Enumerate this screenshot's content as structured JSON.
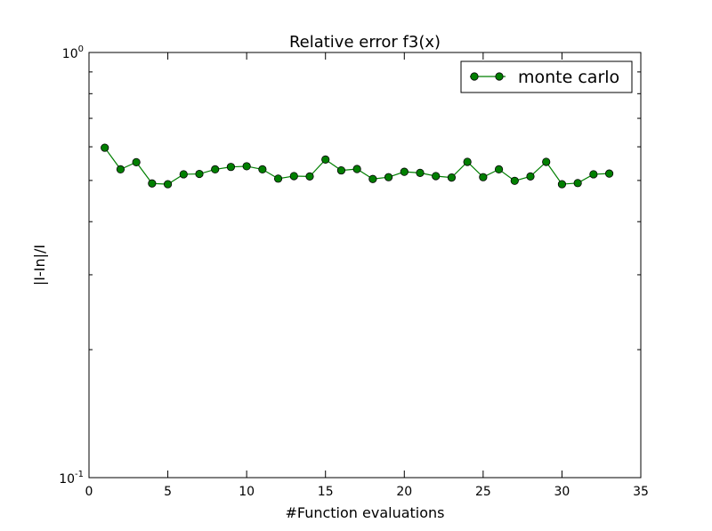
{
  "chart_data": {
    "type": "line",
    "title": "Relative error f3(x)",
    "xlabel": "#Function evaluations",
    "ylabel": "|I-In|/I",
    "xlim": [
      0,
      35
    ],
    "ylim": [
      0.1,
      1
    ],
    "yscale": "log",
    "xticks": [
      "0",
      "5",
      "10",
      "15",
      "20",
      "25",
      "30",
      "35"
    ],
    "yticks": [
      {
        "base": "10",
        "exp": "-1",
        "value": 0.1
      },
      {
        "base": "10",
        "exp": "0",
        "value": 1
      }
    ],
    "legend_position": "top-right",
    "series": [
      {
        "name": "monte carlo",
        "color": "#007f00",
        "marker": "circle",
        "x": [
          1,
          2,
          3,
          4,
          5,
          6,
          7,
          8,
          9,
          10,
          11,
          12,
          13,
          14,
          15,
          16,
          17,
          18,
          19,
          20,
          21,
          22,
          23,
          24,
          25,
          26,
          27,
          28,
          29,
          30,
          31,
          32,
          33
        ],
        "y": [
          0.597,
          0.531,
          0.552,
          0.492,
          0.49,
          0.517,
          0.518,
          0.531,
          0.538,
          0.54,
          0.531,
          0.505,
          0.512,
          0.511,
          0.56,
          0.528,
          0.532,
          0.504,
          0.509,
          0.524,
          0.521,
          0.512,
          0.508,
          0.553,
          0.509,
          0.531,
          0.499,
          0.511,
          0.553,
          0.49,
          0.493,
          0.517,
          0.519
        ]
      }
    ]
  }
}
